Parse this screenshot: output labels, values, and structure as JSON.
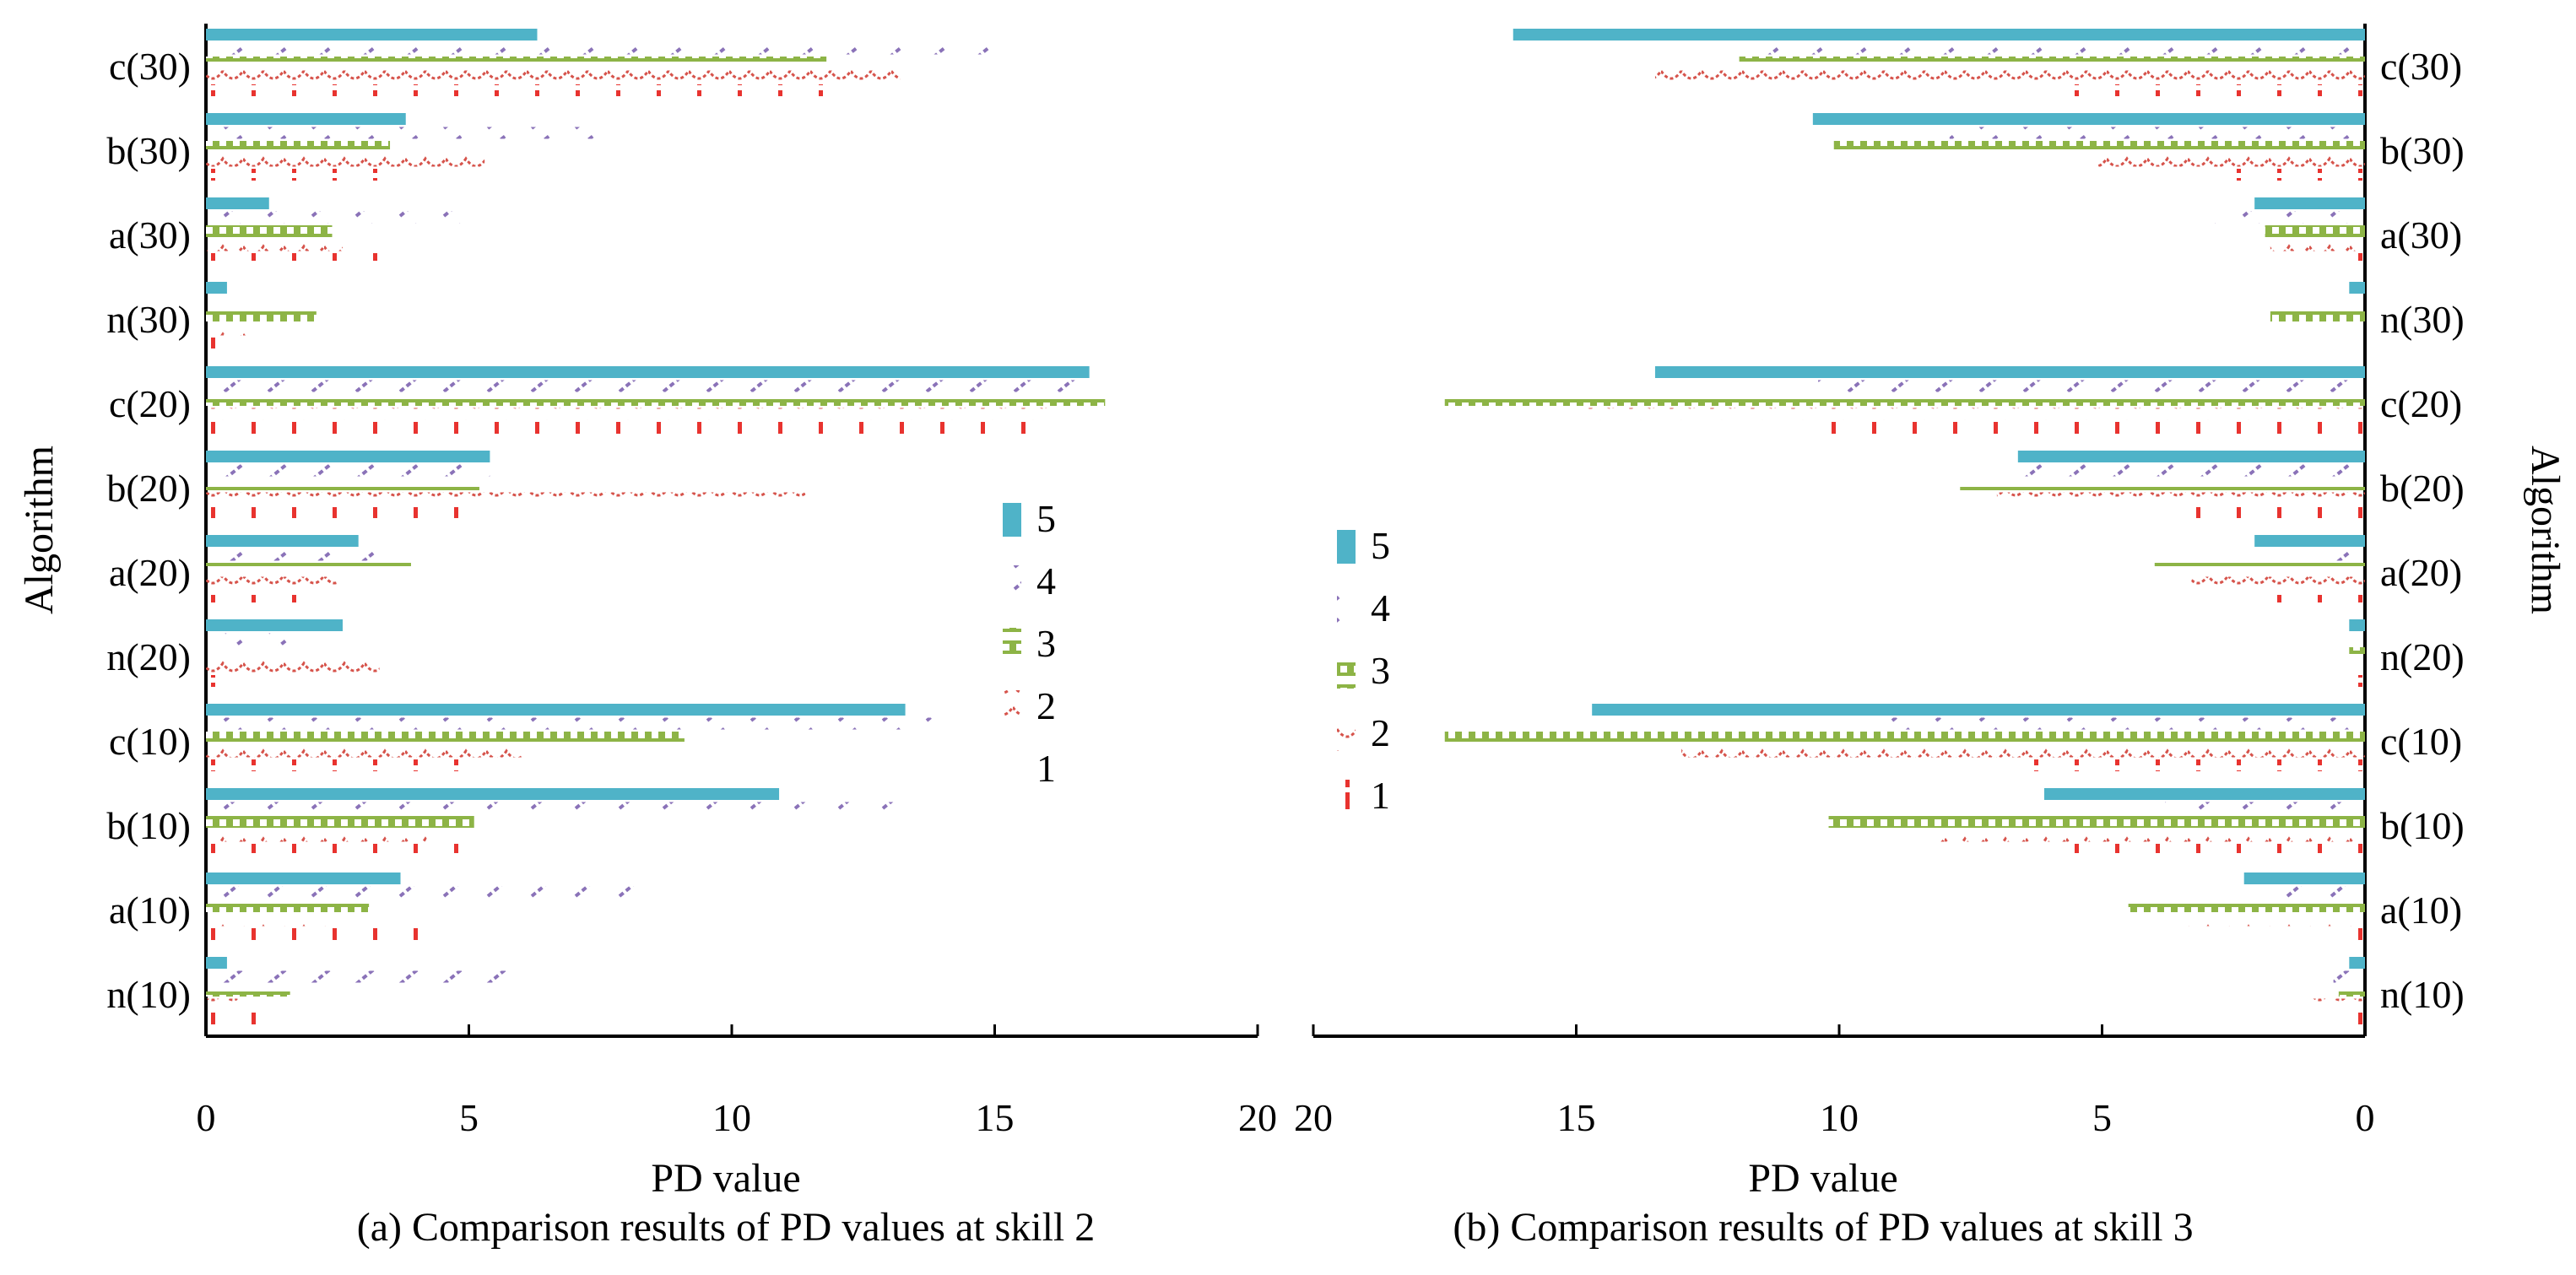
{
  "series_styles": {
    "1": {
      "color": "#e8332f",
      "pattern": "tick"
    },
    "2": {
      "color": "#d6534b",
      "pattern": "wave"
    },
    "3": {
      "color": "#8db446",
      "pattern": "checker"
    },
    "4": {
      "color": "#8a72b8",
      "pattern": "slash"
    },
    "5": {
      "color": "#4fb3c8",
      "pattern": "solid"
    }
  },
  "chart_data": [
    {
      "type": "bar",
      "orientation": "horizontal",
      "caption": "(a) Comparison results of PD values at skill 2",
      "xlabel": "PD value",
      "ylabel": "Algorithm",
      "xlim": [
        0,
        20
      ],
      "xticks": [
        0,
        5,
        10,
        15,
        20
      ],
      "categories": [
        "n(10)",
        "a(10)",
        "b(10)",
        "c(10)",
        "n(20)",
        "a(20)",
        "b(20)",
        "c(20)",
        "n(30)",
        "a(30)",
        "b(30)",
        "c(30)"
      ],
      "legend": {
        "position": "middle-right",
        "entries": [
          "5",
          "4",
          "3",
          "2",
          "1"
        ]
      },
      "series": [
        {
          "name": "1",
          "values": [
            1.1,
            4.2,
            5.1,
            5.2,
            0.3,
            1.9,
            5.2,
            16.1,
            0.3,
            3.5,
            3.5,
            12.3
          ]
        },
        {
          "name": "2",
          "values": [
            0.6,
            2.3,
            4.2,
            6.0,
            3.3,
            2.5,
            11.4,
            16.1,
            0.8,
            2.6,
            5.3,
            13.2
          ]
        },
        {
          "name": "3",
          "values": [
            1.6,
            3.1,
            5.1,
            9.1,
            0.0,
            3.9,
            5.2,
            17.1,
            2.1,
            2.4,
            3.5,
            11.8
          ]
        },
        {
          "name": "4",
          "values": [
            6.1,
            8.3,
            13.3,
            13.8,
            1.6,
            3.5,
            5.4,
            16.8,
            0.0,
            5.2,
            7.7,
            15.4
          ]
        },
        {
          "name": "5",
          "values": [
            0.4,
            3.7,
            10.9,
            13.3,
            2.6,
            2.9,
            5.4,
            16.8,
            0.4,
            1.2,
            3.8,
            6.3
          ]
        }
      ]
    },
    {
      "type": "bar",
      "orientation": "horizontal",
      "caption": "(b) Comparison results of PD values at skill 3",
      "xlabel": "PD value",
      "ylabel": "Algorithm",
      "xlim": [
        0,
        20
      ],
      "xaxis_reversed": true,
      "xticks": [
        20,
        15,
        10,
        5,
        0
      ],
      "categories": [
        "n(10)",
        "a(10)",
        "b(10)",
        "c(10)",
        "n(20)",
        "a(20)",
        "b(20)",
        "c(20)",
        "n(30)",
        "a(30)",
        "b(30)",
        "c(30)"
      ],
      "legend": {
        "position": "middle-left",
        "entries": [
          "5",
          "4",
          "3",
          "2",
          "1"
        ]
      },
      "series": [
        {
          "name": "1",
          "values": [
            0.7,
            0.7,
            6.2,
            6.9,
            0.6,
            2.3,
            3.9,
            10.4,
            0.0,
            0.6,
            2.6,
            5.8
          ]
        },
        {
          "name": "2",
          "values": [
            1.1,
            3.5,
            8.1,
            13.0,
            0.0,
            3.3,
            7.0,
            14.9,
            0.0,
            1.8,
            5.1,
            13.5
          ]
        },
        {
          "name": "3",
          "values": [
            0.5,
            4.5,
            10.2,
            17.5,
            0.3,
            4.0,
            7.7,
            17.5,
            1.8,
            1.9,
            10.1,
            11.9
          ]
        },
        {
          "name": "4",
          "values": [
            0.6,
            2.0,
            3.8,
            9.3,
            0.0,
            0.6,
            6.9,
            10.4,
            0.0,
            2.9,
            7.9,
            11.9
          ]
        },
        {
          "name": "5",
          "values": [
            0.3,
            2.3,
            6.1,
            14.7,
            0.3,
            2.1,
            6.6,
            13.5,
            0.3,
            2.1,
            10.5,
            16.2
          ]
        }
      ]
    }
  ]
}
